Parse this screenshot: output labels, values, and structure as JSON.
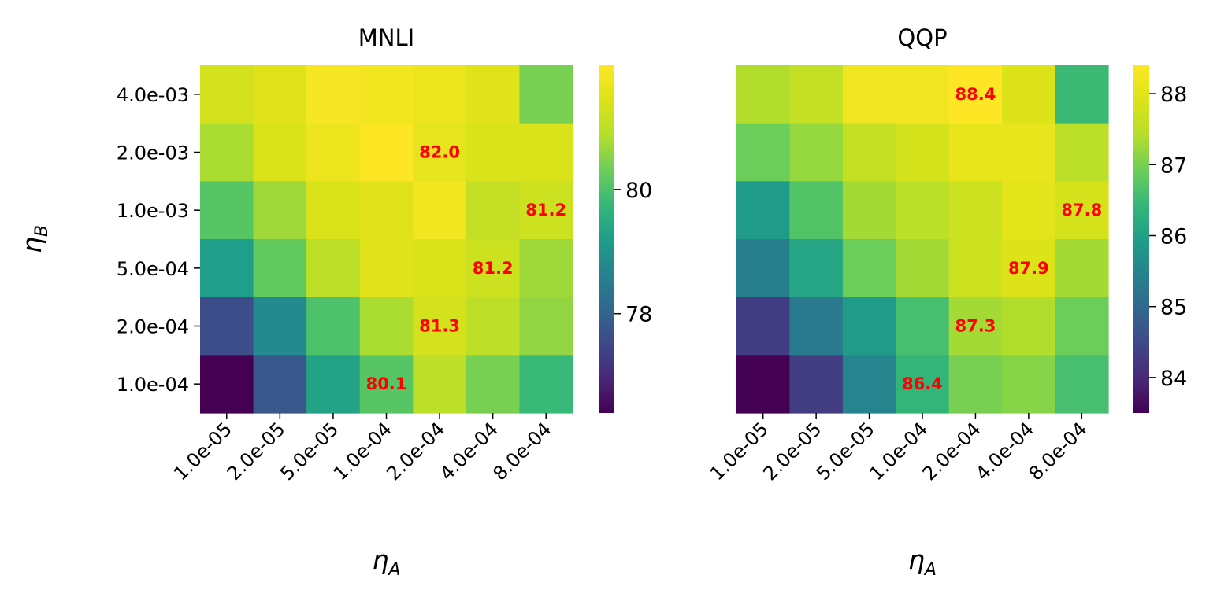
{
  "chart_data": [
    {
      "type": "heatmap",
      "title": "MNLI",
      "xlabel": "ηA",
      "ylabel": "ηB",
      "x_categories": [
        "1.0e-05",
        "2.0e-05",
        "5.0e-05",
        "1.0e-04",
        "2.0e-04",
        "4.0e-04",
        "8.0e-04"
      ],
      "y_categories": [
        "4.0e-03",
        "2.0e-03",
        "1.0e-03",
        "5.0e-04",
        "2.0e-04",
        "1.0e-04"
      ],
      "values": [
        [
          81.3,
          81.5,
          81.9,
          81.8,
          81.7,
          81.5,
          80.4
        ],
        [
          80.8,
          81.4,
          81.7,
          82.0,
          81.6,
          81.4,
          81.4
        ],
        [
          80.1,
          80.7,
          81.4,
          81.5,
          81.8,
          81.1,
          81.2
        ],
        [
          79.2,
          80.2,
          81.0,
          81.5,
          81.4,
          81.2,
          80.7
        ],
        [
          77.6,
          78.8,
          80.0,
          80.8,
          81.3,
          81.0,
          80.6
        ],
        [
          76.4,
          77.8,
          79.3,
          80.1,
          81.0,
          80.4,
          79.8
        ]
      ],
      "annotations": [
        {
          "row": 1,
          "col": 4,
          "text": "82.0"
        },
        {
          "row": 2,
          "col": 6,
          "text": "81.2"
        },
        {
          "row": 3,
          "col": 5,
          "text": "81.2"
        },
        {
          "row": 4,
          "col": 4,
          "text": "81.3"
        },
        {
          "row": 5,
          "col": 3,
          "text": "80.1"
        }
      ],
      "colorbar": {
        "min": 76.4,
        "max": 82.0,
        "ticks": [
          78,
          80
        ],
        "tick_labels": [
          "78",
          "80"
        ],
        "colormap": "viridis"
      }
    },
    {
      "type": "heatmap",
      "title": "QQP",
      "xlabel": "ηA",
      "ylabel": "",
      "x_categories": [
        "1.0e-05",
        "2.0e-05",
        "5.0e-05",
        "1.0e-04",
        "2.0e-04",
        "4.0e-04",
        "8.0e-04"
      ],
      "y_categories": [
        "4.0e-03",
        "2.0e-03",
        "1.0e-03",
        "5.0e-04",
        "2.0e-04",
        "1.0e-04"
      ],
      "values": [
        [
          87.4,
          87.6,
          88.2,
          88.2,
          88.4,
          87.9,
          86.5
        ],
        [
          86.9,
          87.2,
          87.6,
          87.8,
          88.1,
          88.1,
          87.5
        ],
        [
          85.9,
          86.7,
          87.3,
          87.5,
          87.7,
          88.0,
          87.8
        ],
        [
          85.4,
          86.1,
          86.9,
          87.3,
          87.7,
          87.9,
          87.3
        ],
        [
          84.3,
          85.3,
          85.9,
          86.6,
          87.3,
          87.4,
          86.9
        ],
        [
          83.5,
          84.3,
          85.5,
          86.4,
          87.0,
          87.1,
          86.6
        ]
      ],
      "annotations": [
        {
          "row": 0,
          "col": 4,
          "text": "88.4"
        },
        {
          "row": 2,
          "col": 6,
          "text": "87.8"
        },
        {
          "row": 3,
          "col": 5,
          "text": "87.9"
        },
        {
          "row": 4,
          "col": 4,
          "text": "87.3"
        },
        {
          "row": 5,
          "col": 3,
          "text": "86.4"
        }
      ],
      "colorbar": {
        "min": 83.5,
        "max": 88.4,
        "ticks": [
          84,
          85,
          86,
          87,
          88
        ],
        "tick_labels": [
          "84",
          "85",
          "86",
          "87",
          "88"
        ],
        "colormap": "viridis"
      }
    }
  ],
  "colors": {
    "annotation": "#ff0000",
    "text": "#000000",
    "background": "#ffffff"
  }
}
